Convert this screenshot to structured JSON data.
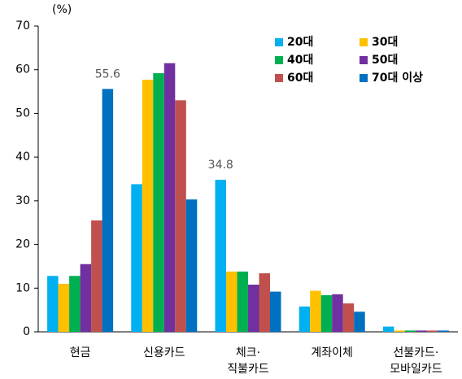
{
  "chart_data": {
    "type": "bar",
    "y_label": "(%)",
    "categories": [
      "현금",
      "신용카드",
      "체크·\n직불카드",
      "계좌이체",
      "선불카드·\n모바일카드"
    ],
    "series": [
      {
        "name": "20대",
        "color": "#00b0f0",
        "values": [
          12.8,
          33.8,
          34.8,
          5.8,
          1.2
        ],
        "value_labels": [
          null,
          null,
          "34.8",
          null,
          null
        ]
      },
      {
        "name": "30대",
        "color": "#ffc000",
        "values": [
          11.0,
          57.7,
          13.8,
          9.4,
          0.3
        ]
      },
      {
        "name": "40대",
        "color": "#00b050",
        "values": [
          12.8,
          59.2,
          13.8,
          8.4,
          0.3
        ]
      },
      {
        "name": "50대",
        "color": "#7030a0",
        "values": [
          15.5,
          61.5,
          10.8,
          8.6,
          0.3
        ]
      },
      {
        "name": "60대",
        "color": "#c0504d",
        "values": [
          25.5,
          53.0,
          13.4,
          6.5,
          0.3
        ]
      },
      {
        "name": "70대 이상",
        "color": "#0070c0",
        "values": [
          55.6,
          30.3,
          9.2,
          4.6,
          0.3
        ],
        "value_labels": [
          "55.6",
          null,
          null,
          null,
          null
        ]
      }
    ],
    "ylim": [
      0,
      70
    ],
    "yticks": [
      0,
      10,
      20,
      30,
      40,
      50,
      60,
      70
    ],
    "grid": false,
    "legend": "upper right"
  }
}
